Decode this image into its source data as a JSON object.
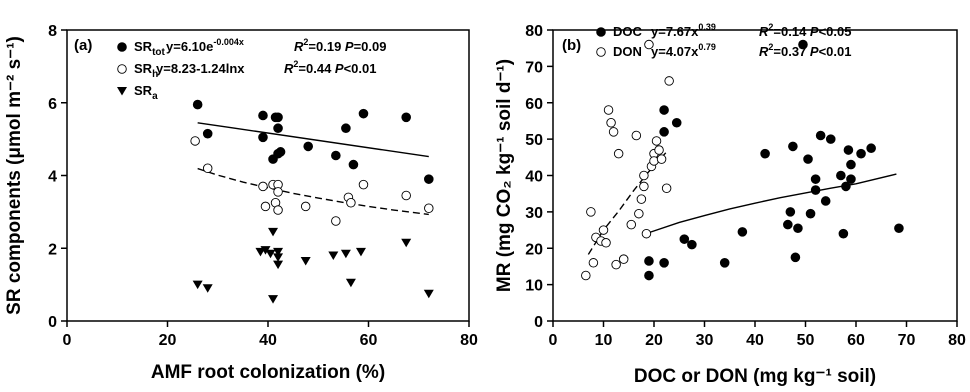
{
  "chart_data": [
    {
      "type": "scatter",
      "panel_label": "(a)",
      "xlabel": "AMF root colonization (%)",
      "ylabel": "SR components (μmol m⁻² s⁻¹)",
      "xlim": [
        0,
        80
      ],
      "ylim": [
        0,
        8
      ],
      "xticks": [
        "0",
        "20",
        "40",
        "60",
        "80"
      ],
      "yticks": [
        "0",
        "2",
        "4",
        "6",
        "8"
      ],
      "legend_placement": "top-left",
      "series": [
        {
          "name": "SRtot",
          "marker": "filled-circle",
          "equation": "y=6.10e-0.004x",
          "stats": "R2=0.19 P=0.09",
          "x": [
            26,
            28,
            39,
            39,
            41,
            41.5,
            42,
            42,
            42,
            42.5,
            48,
            53.5,
            55.5,
            57,
            59,
            67.5,
            72
          ],
          "y": [
            5.95,
            5.15,
            5.65,
            5.05,
            4.45,
            5.6,
            5.6,
            4.6,
            5.3,
            4.65,
            4.8,
            4.55,
            5.3,
            4.3,
            5.7,
            5.6,
            3.9
          ],
          "fit": {
            "style": "solid",
            "x": [
              26,
              72
            ],
            "y": [
              5.45,
              4.52
            ]
          }
        },
        {
          "name": "SRh",
          "marker": "open-circle",
          "equation": "y=8.23-1.24lnx",
          "stats": "R2=0.44 P<0.01",
          "x": [
            25.5,
            28,
            39,
            39.5,
            41,
            41.5,
            42,
            42,
            42,
            47.5,
            53.5,
            56,
            56.5,
            59,
            67.5,
            72
          ],
          "y": [
            4.95,
            4.2,
            3.7,
            3.15,
            3.75,
            3.25,
            3.75,
            3.55,
            3.05,
            3.15,
            2.75,
            3.4,
            3.25,
            3.75,
            3.45,
            3.1
          ],
          "fit": {
            "style": "dashed",
            "x": [
              26,
              30,
              35,
              40,
              45,
              50,
              55,
              60,
              65,
              72
            ],
            "y": [
              4.19,
              4.01,
              3.82,
              3.66,
              3.51,
              3.38,
              3.26,
              3.15,
              3.05,
              2.93
            ]
          }
        },
        {
          "name": "SRa",
          "marker": "filled-triangle-down",
          "equation": "",
          "stats": "",
          "x": [
            26,
            28,
            38.5,
            39.5,
            40.5,
            41,
            41,
            42,
            42,
            42,
            47.5,
            53,
            55.5,
            56.5,
            58.5,
            67.5,
            72
          ],
          "y": [
            1.0,
            0.9,
            1.9,
            1.95,
            1.85,
            2.45,
            0.6,
            1.9,
            1.75,
            1.55,
            1.65,
            1.8,
            1.85,
            1.05,
            1.9,
            2.15,
            0.75
          ]
        }
      ]
    },
    {
      "type": "scatter",
      "panel_label": "(b)",
      "xlabel": "DOC or DON (mg kg⁻¹ soil)",
      "ylabel": "MR (mg CO₂ kg⁻¹ soil d⁻¹)",
      "xlim": [
        0,
        80
      ],
      "ylim": [
        0,
        80
      ],
      "xticks": [
        "0",
        "10",
        "20",
        "30",
        "40",
        "50",
        "60",
        "70",
        "80"
      ],
      "yticks": [
        "0",
        "10",
        "20",
        "30",
        "40",
        "50",
        "60",
        "70",
        "80"
      ],
      "legend_placement": "top-left",
      "series": [
        {
          "name": "DOC",
          "marker": "filled-circle",
          "equation": "y=7.67x0.39",
          "stats": "R2=0.14 P<0.05",
          "x": [
            19,
            19,
            22,
            22,
            22,
            24.5,
            26,
            27.5,
            34,
            37.5,
            42,
            46.5,
            47,
            47.5,
            48,
            48.5,
            49.5,
            50.5,
            51,
            52,
            52,
            53,
            54,
            55,
            57,
            57.5,
            58,
            58.5,
            59,
            59,
            61,
            63,
            68.5
          ],
          "y": [
            12.5,
            16.5,
            16,
            52,
            58,
            54.5,
            22.5,
            21,
            16,
            24.5,
            46,
            26.5,
            30,
            48,
            17.5,
            25.5,
            76,
            44.5,
            29.5,
            36,
            39,
            51,
            33,
            50,
            40,
            24,
            37,
            47,
            43,
            39,
            46,
            47.5,
            25.5
          ],
          "fit": {
            "style": "solid",
            "x": [
              19,
              25,
              30,
              35,
              40,
              45,
              50,
              55,
              60,
              68
            ],
            "y": [
              24.3,
              27.1,
              29.0,
              30.8,
              32.4,
              33.9,
              35.2,
              36.5,
              37.7,
              40.4
            ]
          }
        },
        {
          "name": "DON",
          "marker": "open-circle",
          "equation": "y=4.07x0.79",
          "stats": "R2=0.37 P<0.01",
          "x": [
            6.5,
            7.5,
            8,
            8.5,
            9.5,
            10,
            10.5,
            11,
            11.5,
            12,
            12.5,
            13,
            14,
            15.5,
            16.5,
            17,
            17.5,
            18,
            18,
            18.5,
            19,
            19.5,
            20,
            20,
            20.5,
            21,
            21.5,
            22.5,
            23
          ],
          "y": [
            12.5,
            30,
            16,
            23,
            22,
            25,
            21.5,
            58,
            54.5,
            52,
            15.5,
            46,
            17,
            26.5,
            51,
            29.5,
            33.5,
            37,
            40,
            24,
            76,
            42.5,
            46,
            44,
            49.5,
            47,
            44.5,
            36.5,
            66
          ],
          "fit": {
            "style": "dashed",
            "x": [
              7,
              10,
              13,
              16,
              19,
              22.5
            ],
            "y": [
              18.3,
              25.0,
              30.2,
              35.9,
              41.1,
              46.5
            ]
          }
        }
      ]
    }
  ]
}
